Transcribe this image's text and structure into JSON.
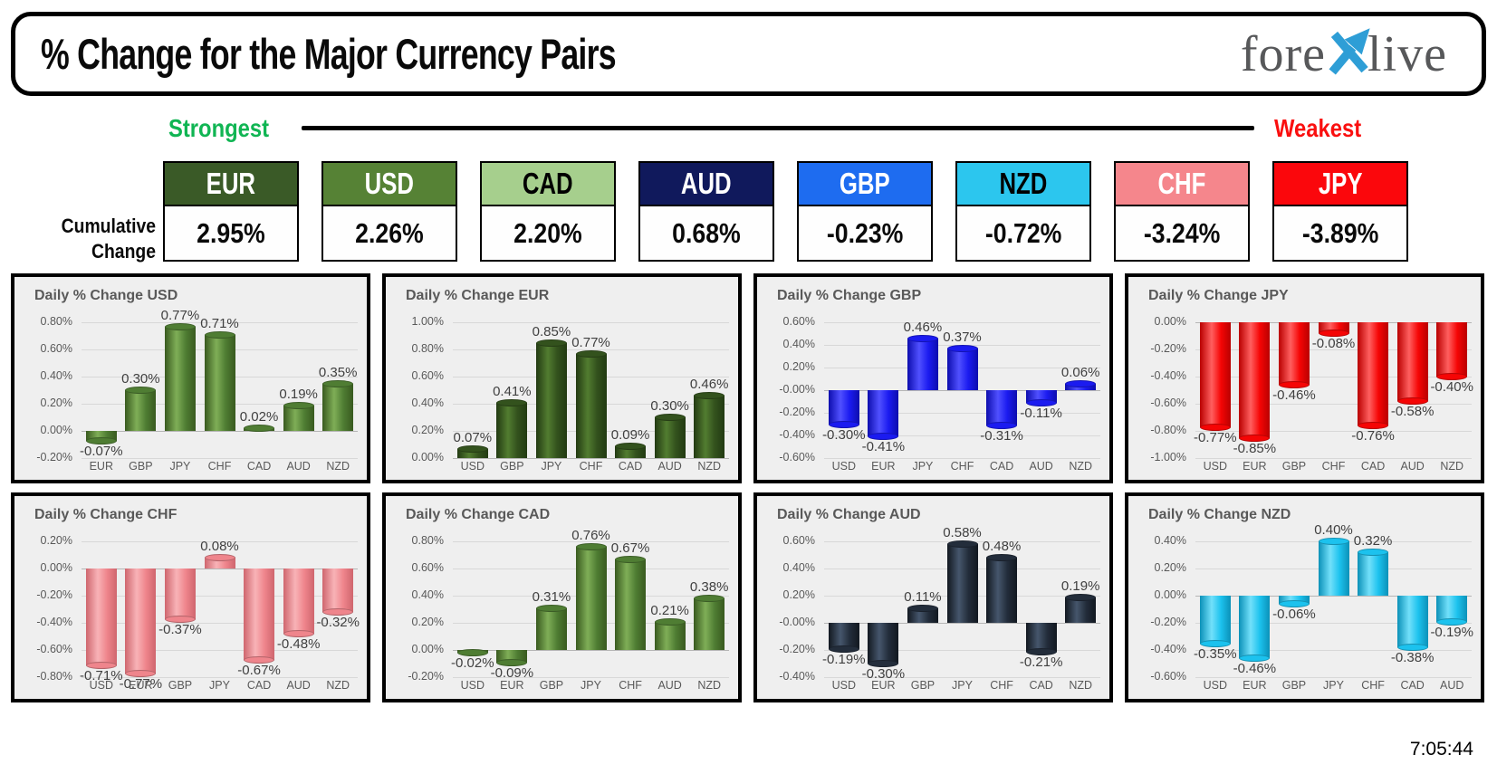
{
  "header": {
    "title": "% Change for the Major Currency Pairs",
    "logo": {
      "part1": "fore",
      "part2": "live",
      "x_color": "#2e9ed6",
      "text_color": "#57585a"
    }
  },
  "scale": {
    "strongest_label": "Strongest",
    "weakest_label": "Weakest",
    "strongest_color": "#10b553",
    "weakest_color": "#fa0f0f"
  },
  "cumulative": {
    "row_label_line1": "Cumulative",
    "row_label_line2": "Change",
    "items": [
      {
        "code": "EUR",
        "value": "2.95%",
        "bg": "#3a5a27",
        "fg": "#ffffff"
      },
      {
        "code": "USD",
        "value": "2.26%",
        "bg": "#568235",
        "fg": "#ffffff"
      },
      {
        "code": "CAD",
        "value": "2.20%",
        "bg": "#a6cf8d",
        "fg": "#000000"
      },
      {
        "code": "AUD",
        "value": "0.68%",
        "bg": "#10195c",
        "fg": "#ffffff"
      },
      {
        "code": "GBP",
        "value": "-0.23%",
        "bg": "#1e6cf0",
        "fg": "#ffffff"
      },
      {
        "code": "NZD",
        "value": "-0.72%",
        "bg": "#2cc6ee",
        "fg": "#000000"
      },
      {
        "code": "CHF",
        "value": "-3.24%",
        "bg": "#f5868c",
        "fg": "#ffffff"
      },
      {
        "code": "JPY",
        "value": "-3.89%",
        "bg": "#fb070c",
        "fg": "#ffffff"
      }
    ]
  },
  "chart_data": [
    {
      "id": "usd",
      "type": "bar",
      "title": "Daily % Change USD",
      "categories": [
        "EUR",
        "GBP",
        "JPY",
        "CHF",
        "CAD",
        "AUD",
        "NZD"
      ],
      "values": [
        -0.07,
        0.3,
        0.77,
        0.71,
        0.02,
        0.19,
        0.35
      ],
      "xlabel": "",
      "ylabel": "",
      "ylim": [
        -0.2,
        0.8
      ],
      "tick_step": 0.2,
      "grid": true,
      "legend": "none",
      "colors": {
        "base": "#4f7d33",
        "light": "#7fae57",
        "dark": "#395a1f"
      }
    },
    {
      "id": "eur",
      "type": "bar",
      "title": "Daily % Change EUR",
      "categories": [
        "USD",
        "GBP",
        "JPY",
        "CHF",
        "CAD",
        "AUD",
        "NZD"
      ],
      "values": [
        0.07,
        0.41,
        0.85,
        0.77,
        0.09,
        0.3,
        0.46
      ],
      "xlabel": "",
      "ylabel": "",
      "ylim": [
        0.0,
        1.0
      ],
      "tick_step": 0.2,
      "grid": true,
      "legend": "none",
      "colors": {
        "base": "#33521d",
        "light": "#527c30",
        "dark": "#223a12"
      }
    },
    {
      "id": "gbp",
      "type": "bar",
      "title": "Daily % Change GBP",
      "categories": [
        "USD",
        "EUR",
        "JPY",
        "CHF",
        "CAD",
        "AUD",
        "NZD"
      ],
      "values": [
        -0.3,
        -0.41,
        0.46,
        0.37,
        -0.31,
        -0.11,
        0.06
      ],
      "xlabel": "",
      "ylabel": "",
      "ylim": [
        -0.6,
        0.6
      ],
      "tick_step": 0.2,
      "grid": true,
      "legend": "none",
      "colors": {
        "base": "#1b1bf0",
        "light": "#5050ff",
        "dark": "#0d0dae"
      }
    },
    {
      "id": "jpy",
      "type": "bar",
      "title": "Daily % Change JPY",
      "categories": [
        "USD",
        "EUR",
        "GBP",
        "CHF",
        "CAD",
        "AUD",
        "NZD"
      ],
      "values": [
        -0.77,
        -0.85,
        -0.46,
        -0.08,
        -0.76,
        -0.58,
        -0.4
      ],
      "xlabel": "",
      "ylabel": "",
      "ylim": [
        -1.0,
        0.0
      ],
      "tick_step": 0.2,
      "grid": true,
      "legend": "none",
      "colors": {
        "base": "#f50505",
        "light": "#ff5f5f",
        "dark": "#b90000"
      }
    },
    {
      "id": "chf",
      "type": "bar",
      "title": "Daily % Change CHF",
      "categories": [
        "USD",
        "EUR",
        "GBP",
        "JPY",
        "CAD",
        "AUD",
        "NZD"
      ],
      "values": [
        -0.71,
        -0.77,
        -0.37,
        0.08,
        -0.67,
        -0.48,
        -0.32
      ],
      "xlabel": "",
      "ylabel": "",
      "ylim": [
        -0.8,
        0.2
      ],
      "tick_step": 0.2,
      "grid": true,
      "legend": "none",
      "colors": {
        "base": "#ef858c",
        "light": "#f8b3b7",
        "dark": "#cf666e"
      }
    },
    {
      "id": "cad",
      "type": "bar",
      "title": "Daily % Change CAD",
      "categories": [
        "USD",
        "EUR",
        "GBP",
        "JPY",
        "CHF",
        "AUD",
        "NZD"
      ],
      "values": [
        -0.02,
        -0.09,
        0.31,
        0.76,
        0.67,
        0.21,
        0.38
      ],
      "xlabel": "",
      "ylabel": "",
      "ylim": [
        -0.2,
        0.8
      ],
      "tick_step": 0.2,
      "grid": true,
      "legend": "none",
      "colors": {
        "base": "#4f7d33",
        "light": "#7fae57",
        "dark": "#395a1f"
      }
    },
    {
      "id": "aud",
      "type": "bar",
      "title": "Daily % Change AUD",
      "categories": [
        "USD",
        "EUR",
        "GBP",
        "JPY",
        "CHF",
        "CAD",
        "NZD"
      ],
      "values": [
        -0.19,
        -0.3,
        0.11,
        0.58,
        0.48,
        -0.21,
        0.19
      ],
      "xlabel": "",
      "ylabel": "",
      "ylim": [
        -0.4,
        0.6
      ],
      "tick_step": 0.2,
      "grid": true,
      "legend": "none",
      "colors": {
        "base": "#232d3b",
        "light": "#46566c",
        "dark": "#121820"
      }
    },
    {
      "id": "nzd",
      "type": "bar",
      "title": "Daily % Change NZD",
      "categories": [
        "USD",
        "EUR",
        "GBP",
        "JPY",
        "CHF",
        "CAD",
        "AUD"
      ],
      "values": [
        -0.35,
        -0.46,
        -0.06,
        0.4,
        0.32,
        -0.38,
        -0.19
      ],
      "xlabel": "",
      "ylabel": "",
      "ylim": [
        -0.6,
        0.4
      ],
      "tick_step": 0.2,
      "grid": true,
      "legend": "none",
      "colors": {
        "base": "#1cc2ee",
        "light": "#72e0fa",
        "dark": "#0b91b8"
      }
    }
  ],
  "footer": {
    "timestamp": "7:05:44"
  }
}
